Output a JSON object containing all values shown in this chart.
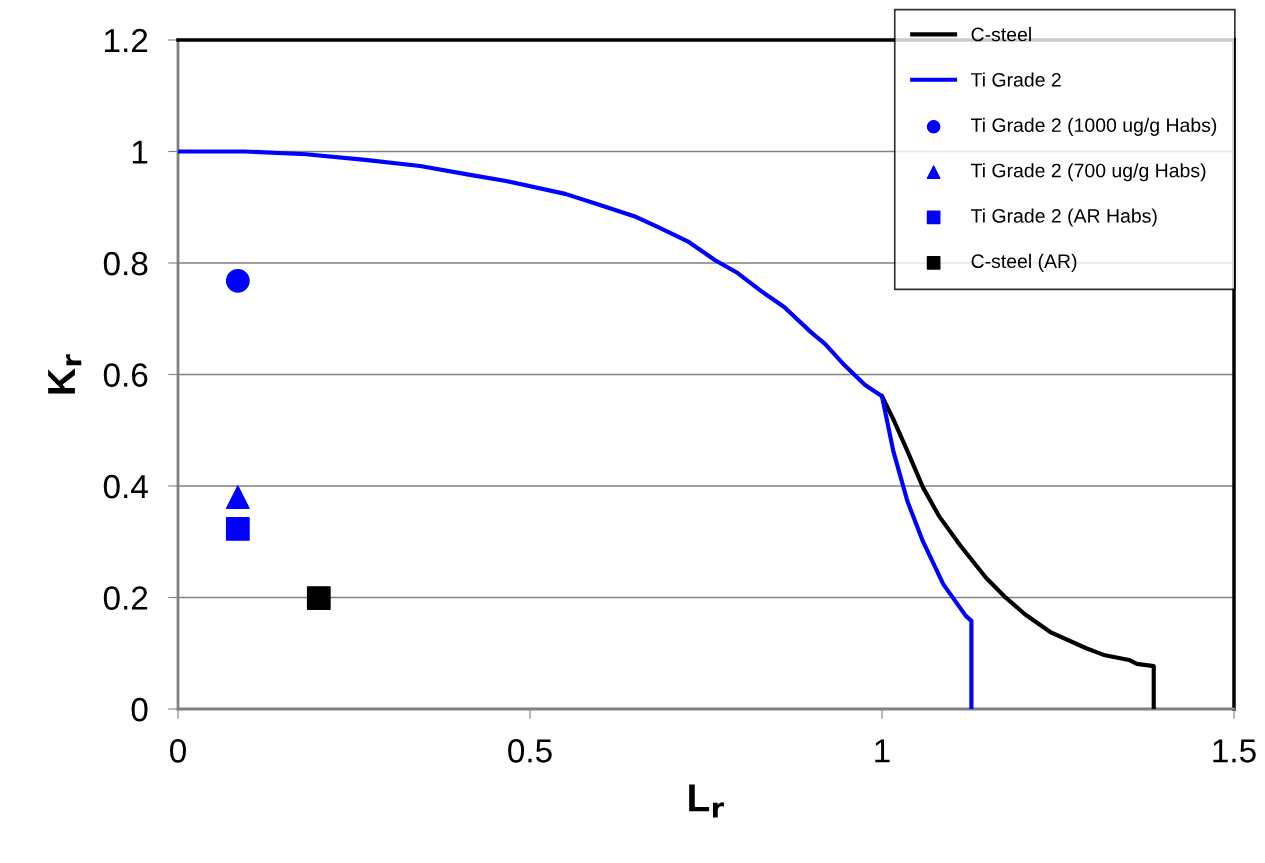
{
  "chart_data": {
    "type": "line",
    "xlabel": "L$_{r}$",
    "ylabel": "K$_{r}$",
    "xlim": [
      0,
      1.5
    ],
    "ylim": [
      0,
      1.2
    ],
    "xticks": [
      0,
      0.5,
      1,
      1.5
    ],
    "yticks": [
      0,
      0.2,
      0.4,
      0.6,
      0.8,
      1,
      1.2
    ],
    "grid": "y",
    "legend": "top right",
    "series": [
      {
        "name": "C-steel",
        "color": "#000000",
        "marker": "none",
        "x": [
          1.0,
          1.016,
          1.036,
          1.058,
          1.081,
          1.112,
          1.148,
          1.173,
          1.203,
          1.239,
          1.29,
          1.315,
          1.351,
          1.362,
          1.386,
          1.386
        ],
        "values": [
          0.561,
          0.52,
          0.463,
          0.398,
          0.346,
          0.292,
          0.235,
          0.203,
          0.17,
          0.138,
          0.109,
          0.097,
          0.088,
          0.081,
          0.077,
          0
        ]
      },
      {
        "name": "Ti Grade 2",
        "color": "#0000ff",
        "marker": "none",
        "x": [
          0,
          0.095,
          0.182,
          0.266,
          0.344,
          0.415,
          0.466,
          0.55,
          0.595,
          0.648,
          0.679,
          0.724,
          0.763,
          0.795,
          0.828,
          0.861,
          0.899,
          0.919,
          0.945,
          0.976,
          1.0,
          1.016,
          1.036,
          1.058,
          1.087,
          1.119,
          1.127,
          1.127
        ],
        "values": [
          1.0,
          1.0,
          0.995,
          0.985,
          0.974,
          0.958,
          0.947,
          0.924,
          0.906,
          0.884,
          0.866,
          0.839,
          0.805,
          0.782,
          0.75,
          0.721,
          0.676,
          0.655,
          0.619,
          0.581,
          0.561,
          0.463,
          0.373,
          0.301,
          0.224,
          0.167,
          0.158,
          0
        ]
      },
      {
        "name": "Ti Grade 2 (1000 ug/g Habs)",
        "type": "scatter",
        "color": "#0000ff",
        "marker": "circle",
        "x": [
          0.085
        ],
        "values": [
          0.768
        ]
      },
      {
        "name": "Ti Grade 2 (700 ug/g Habs)",
        "type": "scatter",
        "color": "#0000ff",
        "marker": "triangle",
        "x": [
          0.085
        ],
        "values": [
          0.38
        ]
      },
      {
        "name": "Ti Grade 2 (AR Habs)",
        "type": "scatter",
        "color": "#0000ff",
        "marker": "square",
        "x": [
          0.085
        ],
        "values": [
          0.323
        ]
      },
      {
        "name": "C-steel (AR)",
        "type": "scatter",
        "color": "#000000",
        "marker": "square",
        "x": [
          0.2
        ],
        "values": [
          0.199
        ]
      }
    ]
  }
}
